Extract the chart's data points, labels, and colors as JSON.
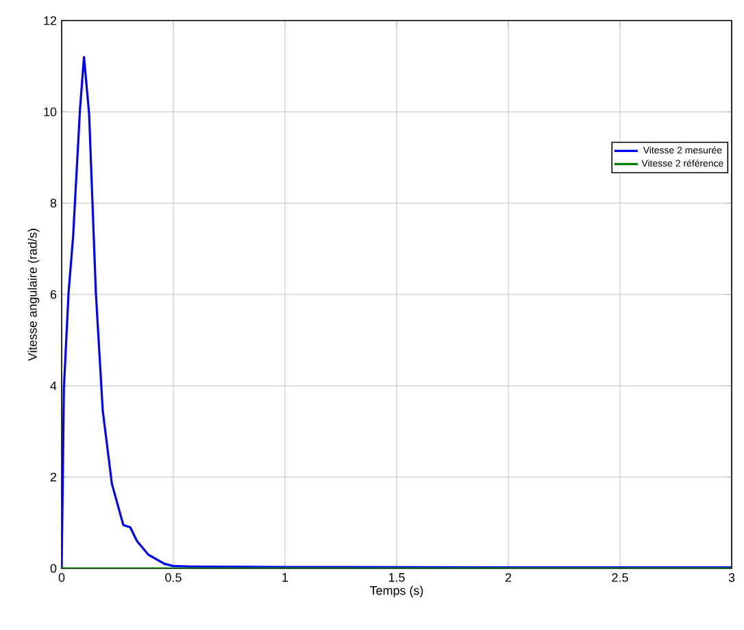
{
  "chart_data": {
    "type": "line",
    "xlabel": "Temps (s)",
    "ylabel": "Vitesse angulaire (rad/s)",
    "xlim": [
      0,
      3
    ],
    "ylim": [
      0,
      12
    ],
    "xticks": [
      0,
      0.5,
      1,
      1.5,
      2,
      2.5,
      3
    ],
    "yticks": [
      0,
      2,
      4,
      6,
      8,
      10,
      12
    ],
    "grid": true,
    "legend": "right",
    "marker": "none",
    "line_style": "solid",
    "series": [
      {
        "name": "Vitesse 2 mesurée",
        "color": "#0000ff",
        "x": [
          0,
          0.01,
          0.031,
          0.051,
          0.082,
          0.1,
          0.123,
          0.153,
          0.184,
          0.225,
          0.276,
          0.307,
          0.337,
          0.388,
          0.46,
          0.5,
          0.58,
          1,
          2,
          3
        ],
        "values": [
          0,
          3.95,
          6.05,
          7.25,
          10.05,
          11.2,
          9.95,
          6.05,
          3.45,
          1.85,
          0.95,
          0.9,
          0.6,
          0.3,
          0.1,
          0.05,
          0.04,
          0.03,
          0.02,
          0.02
        ]
      },
      {
        "name": "Vitesse 2 référence",
        "color": "#008000",
        "x": [
          0,
          3
        ],
        "values": [
          0,
          0
        ]
      }
    ]
  }
}
